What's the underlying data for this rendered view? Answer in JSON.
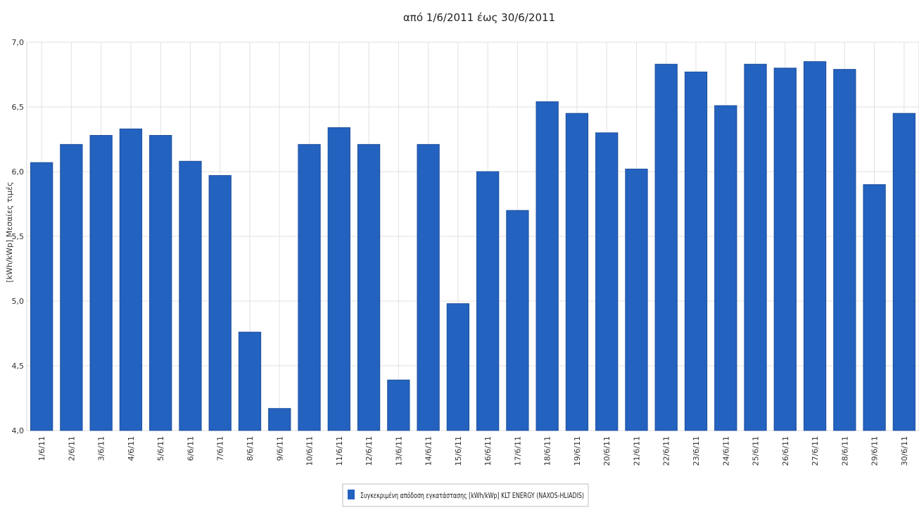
{
  "chart_data": {
    "type": "bar",
    "title": "από 1/6/2011 έως 30/6/2011",
    "ylabel": "[kWh/kWp] Μεσαίες τιμές",
    "xlabel": "",
    "ylim": [
      4.0,
      7.0
    ],
    "yticks": [
      "4,0",
      "4,5",
      "5,0",
      "5,5",
      "6,0",
      "6,5",
      "7,0"
    ],
    "ytick_values": [
      4.0,
      4.5,
      5.0,
      5.5,
      6.0,
      6.5,
      7.0
    ],
    "grid": true,
    "legend_position": "bottom",
    "categories": [
      "1/6/11",
      "2/6/11",
      "3/6/11",
      "4/6/11",
      "5/6/11",
      "6/6/11",
      "7/6/11",
      "8/6/11",
      "9/6/11",
      "10/6/11",
      "11/6/11",
      "12/6/11",
      "13/6/11",
      "14/6/11",
      "15/6/11",
      "16/6/11",
      "17/6/11",
      "18/6/11",
      "19/6/11",
      "20/6/11",
      "21/6/11",
      "22/6/11",
      "23/6/11",
      "24/6/11",
      "25/6/11",
      "26/6/11",
      "27/6/11",
      "28/6/11",
      "29/6/11",
      "30/6/11"
    ],
    "series": [
      {
        "name": "Συγκεκριμένη απόδοση εγκατάστασης [kWh/kWp] KLT ENERGY (NAXOS-HLIADIS)",
        "color": "#2462c0",
        "values": [
          6.07,
          6.21,
          6.28,
          6.33,
          6.28,
          6.08,
          5.97,
          4.76,
          4.17,
          6.21,
          6.34,
          6.21,
          4.39,
          6.21,
          4.98,
          6.0,
          5.7,
          6.54,
          6.45,
          6.3,
          6.02,
          6.83,
          6.77,
          6.51,
          6.83,
          6.8,
          6.85,
          6.79,
          5.9,
          6.45
        ]
      }
    ]
  }
}
